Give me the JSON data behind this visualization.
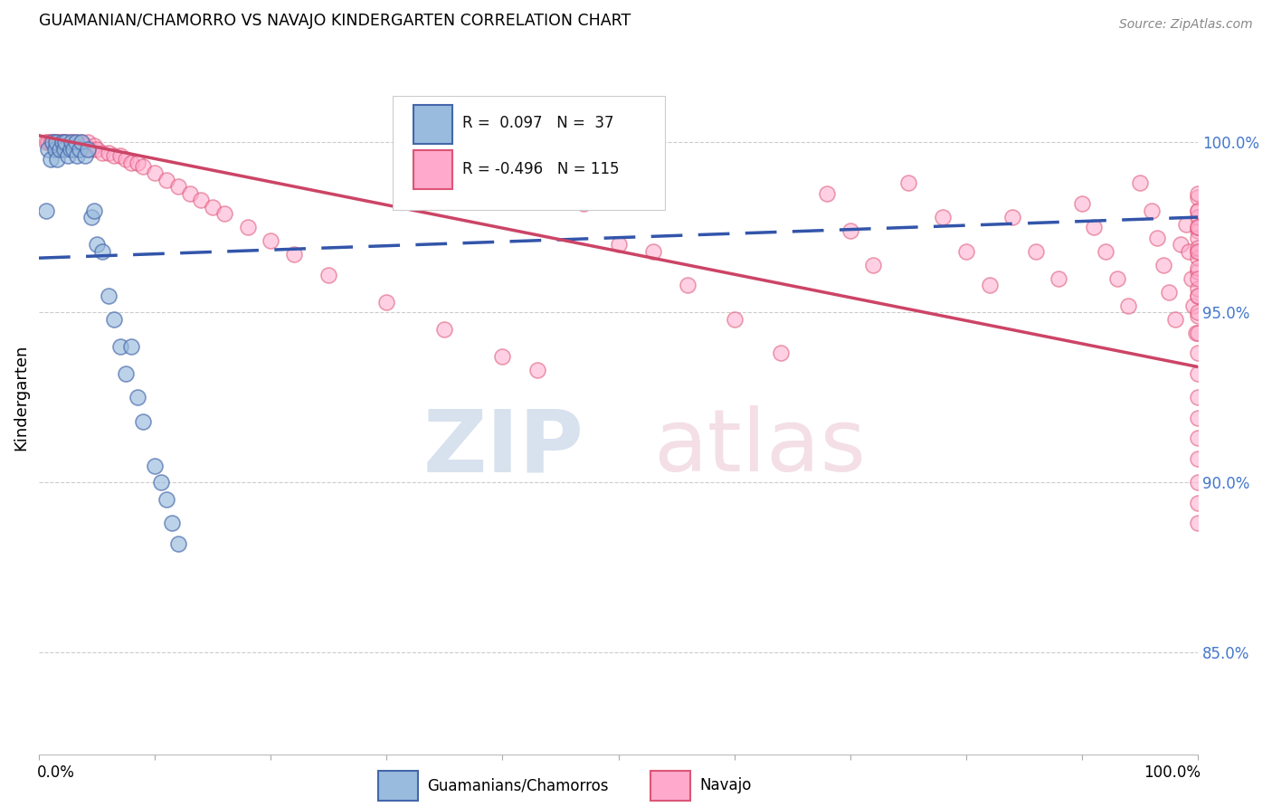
{
  "title": "GUAMANIAN/CHAMORRO VS NAVAJO KINDERGARTEN CORRELATION CHART",
  "source": "Source: ZipAtlas.com",
  "ylabel": "Kindergarten",
  "y_ticks": [
    0.85,
    0.9,
    0.95,
    1.0
  ],
  "y_tick_labels": [
    "85.0%",
    "90.0%",
    "95.0%",
    "100.0%"
  ],
  "xlim": [
    0.0,
    1.0
  ],
  "ylim": [
    0.82,
    1.03
  ],
  "legend_R1": "0.097",
  "legend_N1": "37",
  "legend_R2": "-0.496",
  "legend_N2": "115",
  "blue_fill": "#99BBDD",
  "blue_edge": "#4466AA",
  "blue_line": "#3355AA",
  "pink_fill": "#FFAACC",
  "pink_edge": "#DD5577",
  "pink_line": "#CC4466",
  "blue_trend_x": [
    0.0,
    1.0
  ],
  "blue_trend_y": [
    0.966,
    0.978
  ],
  "pink_trend_x": [
    0.0,
    1.0
  ],
  "pink_trend_y": [
    1.002,
    0.934
  ],
  "blue_x": [
    0.006,
    0.008,
    0.01,
    0.012,
    0.014,
    0.015,
    0.016,
    0.018,
    0.02,
    0.022,
    0.023,
    0.025,
    0.027,
    0.028,
    0.03,
    0.032,
    0.033,
    0.035,
    0.037,
    0.04,
    0.042,
    0.045,
    0.048,
    0.05,
    0.055,
    0.06,
    0.065,
    0.07,
    0.075,
    0.08,
    0.085,
    0.09,
    0.1,
    0.105,
    0.11,
    0.115,
    0.12
  ],
  "blue_y": [
    0.98,
    0.998,
    0.995,
    1.0,
    0.998,
    1.0,
    0.995,
    0.998,
    1.0,
    0.998,
    1.0,
    0.996,
    0.998,
    1.0,
    0.998,
    1.0,
    0.996,
    0.998,
    1.0,
    0.996,
    0.998,
    0.978,
    0.98,
    0.97,
    0.968,
    0.955,
    0.948,
    0.94,
    0.932,
    0.94,
    0.925,
    0.918,
    0.905,
    0.9,
    0.895,
    0.888,
    0.882
  ],
  "navajo_x": [
    0.006,
    0.008,
    0.01,
    0.012,
    0.014,
    0.015,
    0.016,
    0.018,
    0.02,
    0.022,
    0.023,
    0.025,
    0.027,
    0.028,
    0.03,
    0.032,
    0.033,
    0.035,
    0.037,
    0.04,
    0.042,
    0.045,
    0.048,
    0.05,
    0.055,
    0.06,
    0.065,
    0.07,
    0.075,
    0.08,
    0.085,
    0.09,
    0.1,
    0.11,
    0.12,
    0.13,
    0.14,
    0.15,
    0.16,
    0.18,
    0.2,
    0.22,
    0.25,
    0.3,
    0.35,
    0.4,
    0.43,
    0.47,
    0.5,
    0.53,
    0.56,
    0.6,
    0.64,
    0.68,
    0.7,
    0.72,
    0.75,
    0.78,
    0.8,
    0.82,
    0.84,
    0.86,
    0.88,
    0.9,
    0.91,
    0.92,
    0.93,
    0.94,
    0.95,
    0.96,
    0.965,
    0.97,
    0.975,
    0.98,
    0.985,
    0.99,
    0.992,
    0.994,
    0.996,
    0.998,
    1.0,
    1.0,
    1.0,
    1.0,
    1.0,
    1.0,
    1.0,
    1.0,
    1.0,
    1.0,
    1.0,
    1.0,
    1.0,
    1.0,
    1.0,
    1.0,
    1.0,
    1.0,
    1.0,
    1.0,
    1.0,
    1.0,
    1.0,
    1.0,
    1.0,
    1.0,
    1.0,
    1.0,
    1.0,
    1.0,
    1.0
  ],
  "navajo_y": [
    1.0,
    1.0,
    1.0,
    1.0,
    1.0,
    0.999,
    1.0,
    1.0,
    1.0,
    0.999,
    1.0,
    1.0,
    0.999,
    1.0,
    0.999,
    1.0,
    0.999,
    0.998,
    1.0,
    0.999,
    1.0,
    0.998,
    0.999,
    0.998,
    0.997,
    0.997,
    0.996,
    0.996,
    0.995,
    0.994,
    0.994,
    0.993,
    0.991,
    0.989,
    0.987,
    0.985,
    0.983,
    0.981,
    0.979,
    0.975,
    0.971,
    0.967,
    0.961,
    0.953,
    0.945,
    0.937,
    0.933,
    0.982,
    0.97,
    0.968,
    0.958,
    0.948,
    0.938,
    0.985,
    0.974,
    0.964,
    0.988,
    0.978,
    0.968,
    0.958,
    0.978,
    0.968,
    0.96,
    0.982,
    0.975,
    0.968,
    0.96,
    0.952,
    0.988,
    0.98,
    0.972,
    0.964,
    0.956,
    0.948,
    0.97,
    0.976,
    0.968,
    0.96,
    0.952,
    0.944,
    0.98,
    0.974,
    0.968,
    0.962,
    0.955,
    0.949,
    0.984,
    0.978,
    0.972,
    0.966,
    0.975,
    0.969,
    0.963,
    0.957,
    0.95,
    0.944,
    0.938,
    0.932,
    0.925,
    0.919,
    0.913,
    0.907,
    0.9,
    0.894,
    0.888,
    0.975,
    0.98,
    0.985,
    0.968,
    0.96,
    0.955
  ]
}
